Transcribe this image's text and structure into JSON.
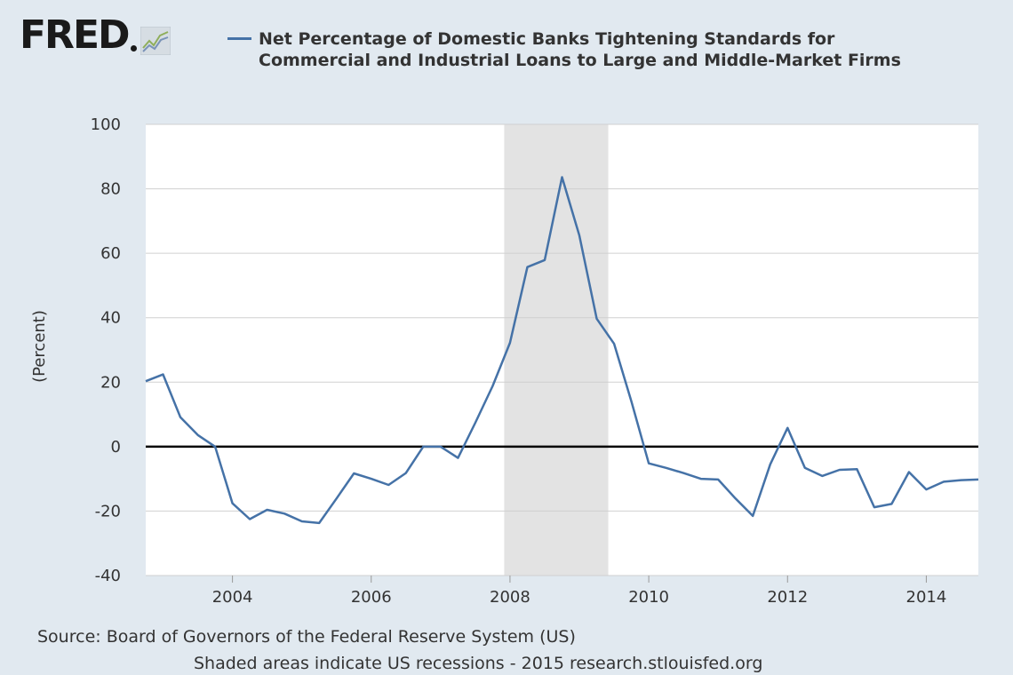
{
  "logo": {
    "text": "FRED"
  },
  "legend": {
    "line1": "Net Percentage of Domestic Banks Tightening Standards for",
    "line2": "Commercial and Industrial Loans to Large and Middle-Market Firms",
    "series_color": "#4572a7"
  },
  "footer": {
    "source": "Source: Board of Governors of the Federal Reserve System (US)",
    "note": "Shaded areas indicate US recessions - 2015 research.stlouisfed.org"
  },
  "colors": {
    "background": "#e1e9f0",
    "plot_background": "#ffffff",
    "recession_shade": "#e3e3e3",
    "gridline": "#d0d0d0",
    "zero_line": "#000000"
  },
  "chart_data": {
    "type": "line",
    "ylabel": "(Percent)",
    "xlabel": "",
    "ylim": [
      -40,
      100
    ],
    "yticks": [
      -40,
      -20,
      0,
      20,
      40,
      60,
      80,
      100
    ],
    "xlim": [
      2002.75,
      2014.75
    ],
    "xticks": [
      2004,
      2006,
      2008,
      2010,
      2012,
      2014
    ],
    "grid": "horizontal",
    "recessions": [
      {
        "start": "2007-12",
        "end": "2009-06"
      }
    ],
    "series": [
      {
        "name": "Net Percentage of Domestic Banks Tightening Standards for Commercial and Industrial Loans to Large and Middle-Market Firms",
        "x": [
          "2002-10",
          "2003-01",
          "2003-04",
          "2003-07",
          "2003-10",
          "2004-01",
          "2004-04",
          "2004-07",
          "2004-10",
          "2005-01",
          "2005-04",
          "2005-07",
          "2005-10",
          "2006-01",
          "2006-04",
          "2006-07",
          "2006-10",
          "2007-01",
          "2007-04",
          "2007-07",
          "2007-10",
          "2008-01",
          "2008-04",
          "2008-07",
          "2008-10",
          "2009-01",
          "2009-04",
          "2009-07",
          "2009-10",
          "2010-01",
          "2010-04",
          "2010-07",
          "2010-10",
          "2011-01",
          "2011-04",
          "2011-07",
          "2011-10",
          "2012-01",
          "2012-04",
          "2012-07",
          "2012-10",
          "2013-01",
          "2013-04",
          "2013-07",
          "2013-10",
          "2014-01",
          "2014-04",
          "2014-07",
          "2014-10"
        ],
        "values": [
          20.3,
          22.4,
          9.1,
          3.6,
          0.0,
          -17.6,
          -22.5,
          -19.6,
          -20.8,
          -23.2,
          -23.7,
          -16.1,
          -8.3,
          -10.0,
          -11.9,
          -8.2,
          0.0,
          0.0,
          -3.5,
          7.4,
          18.8,
          32.2,
          55.7,
          57.9,
          83.6,
          65.5,
          39.7,
          31.9,
          14.0,
          -5.2,
          -6.6,
          -8.2,
          -10.0,
          -10.2,
          -16.1,
          -21.5,
          -5.5,
          5.8,
          -6.6,
          -9.1,
          -7.2,
          -7.0,
          -18.8,
          -17.8,
          -7.9,
          -13.3,
          -10.9,
          -10.4,
          -10.2
        ]
      }
    ]
  }
}
